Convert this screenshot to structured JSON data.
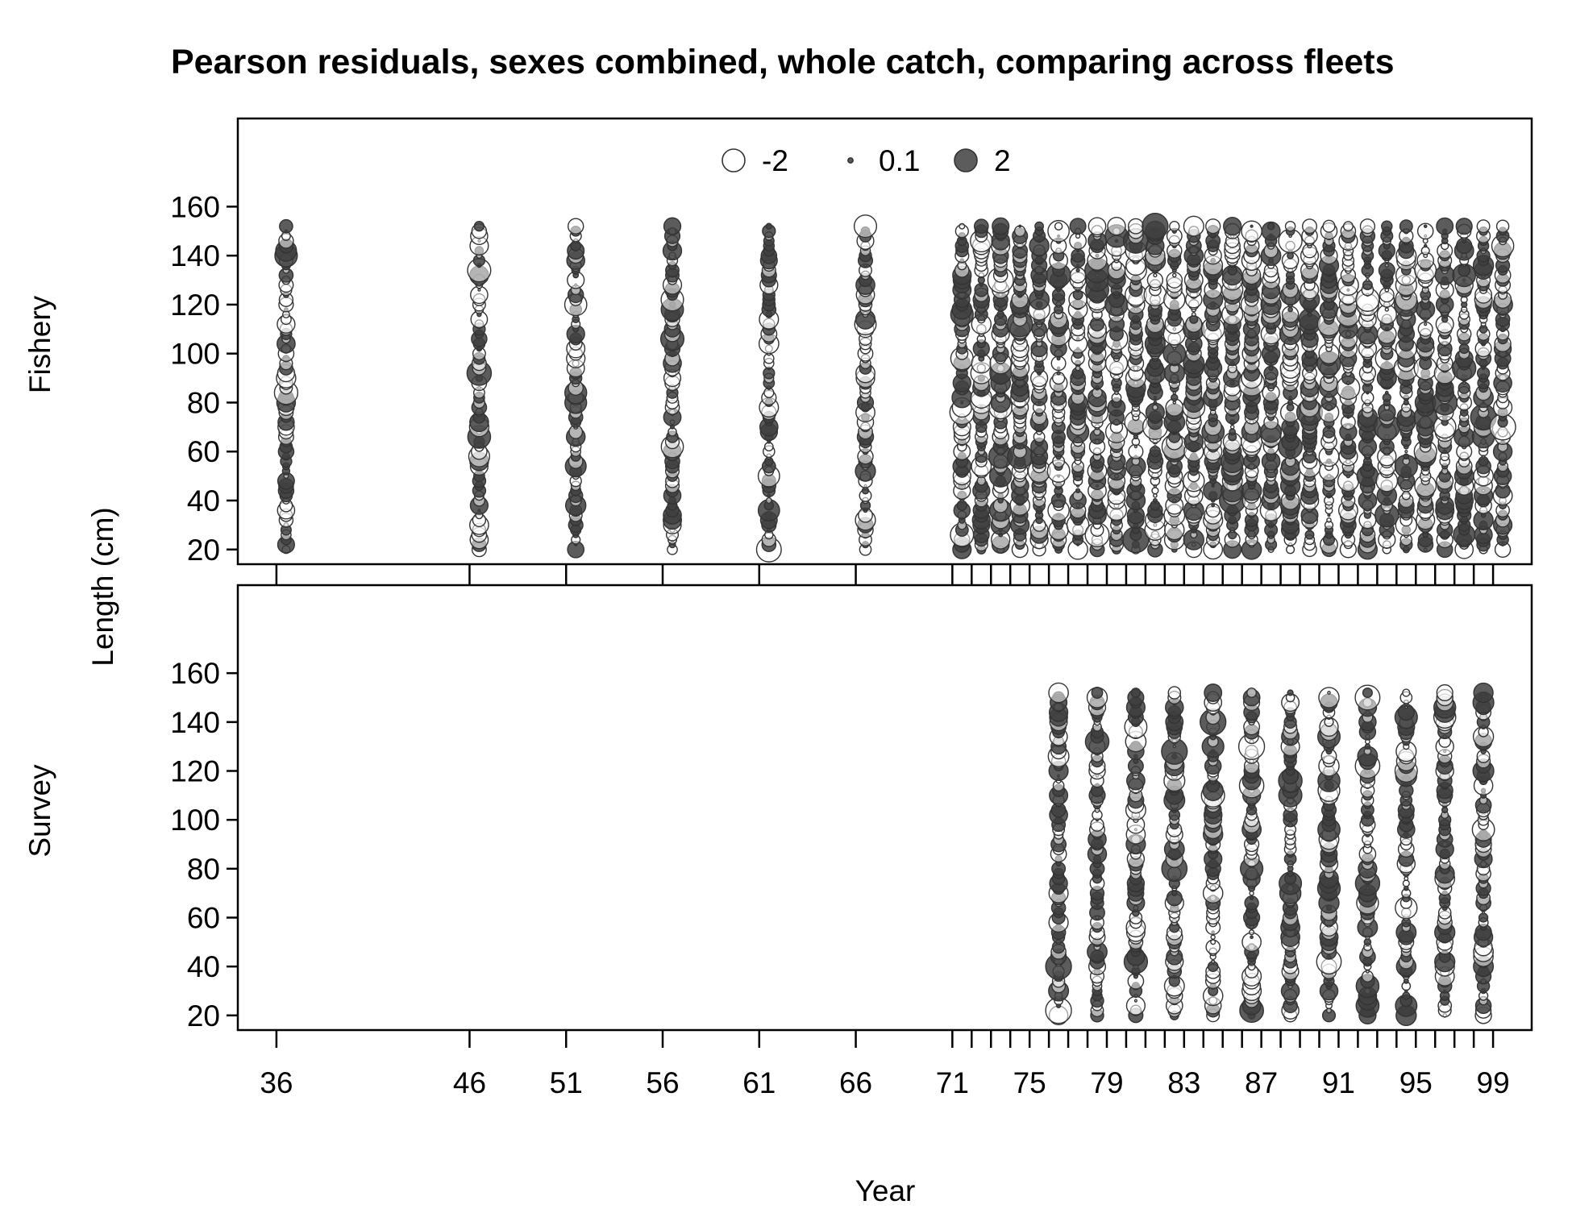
{
  "chart_data": {
    "type": "scatter",
    "title": "Pearson residuals, sexes combined, whole catch, comparing across fleets",
    "xlabel": "Year",
    "ylabel": "Length (cm)",
    "legend": {
      "placement": "top-center",
      "entries": [
        {
          "label": "-2",
          "value": -2,
          "fill": "open"
        },
        {
          "label": "0.1",
          "value": 0.1,
          "fill": "filled"
        },
        {
          "label": "2",
          "value": 2,
          "fill": "filled"
        }
      ]
    },
    "xlim": [
      34,
      101
    ],
    "x_ticks": [
      36,
      46,
      51,
      56,
      61,
      66,
      71,
      72,
      73,
      74,
      75,
      76,
      77,
      78,
      79,
      80,
      81,
      82,
      83,
      84,
      85,
      86,
      87,
      88,
      89,
      90,
      91,
      92,
      93,
      94,
      95,
      96,
      97,
      98,
      99
    ],
    "x_tick_labels": [
      36,
      46,
      51,
      56,
      61,
      66,
      71,
      75,
      79,
      83,
      87,
      91,
      95,
      99
    ],
    "length_bins": [
      20,
      22,
      24,
      26,
      28,
      30,
      32,
      34,
      36,
      38,
      40,
      42,
      44,
      46,
      48,
      50,
      52,
      54,
      56,
      58,
      60,
      62,
      64,
      66,
      68,
      70,
      72,
      74,
      76,
      78,
      80,
      82,
      84,
      86,
      88,
      90,
      92,
      94,
      96,
      98,
      100,
      102,
      104,
      106,
      108,
      110,
      112,
      114,
      116,
      118,
      120,
      122,
      124,
      126,
      128,
      130,
      132,
      134,
      136,
      138,
      140,
      142,
      144,
      146,
      148,
      150,
      152
    ],
    "panels": [
      {
        "name": "Fishery",
        "ylim": [
          14,
          196
        ],
        "y_ticks": [
          20,
          40,
          60,
          80,
          100,
          120,
          140,
          160
        ],
        "years": [
          36.5,
          46.5,
          51.5,
          56.5,
          61.5,
          66.5,
          71.5,
          72.5,
          73.5,
          74.5,
          75.5,
          76.5,
          77.5,
          78.5,
          79.5,
          80.5,
          81.5,
          82.5,
          83.5,
          84.5,
          85.5,
          86.5,
          87.5,
          88.5,
          89.5,
          90.5,
          91.5,
          92.5,
          93.5,
          94.5,
          95.5,
          96.5,
          97.5,
          98.5,
          99.5
        ],
        "residual_seed": 11
      },
      {
        "name": "Survey",
        "ylim": [
          14,
          196
        ],
        "y_ticks": [
          20,
          40,
          60,
          80,
          100,
          120,
          140,
          160
        ],
        "years": [
          76.5,
          78.5,
          80.5,
          82.5,
          84.5,
          86.5,
          88.5,
          90.5,
          92.5,
          94.5,
          96.5,
          98.5
        ],
        "residual_seed": 47
      }
    ]
  }
}
